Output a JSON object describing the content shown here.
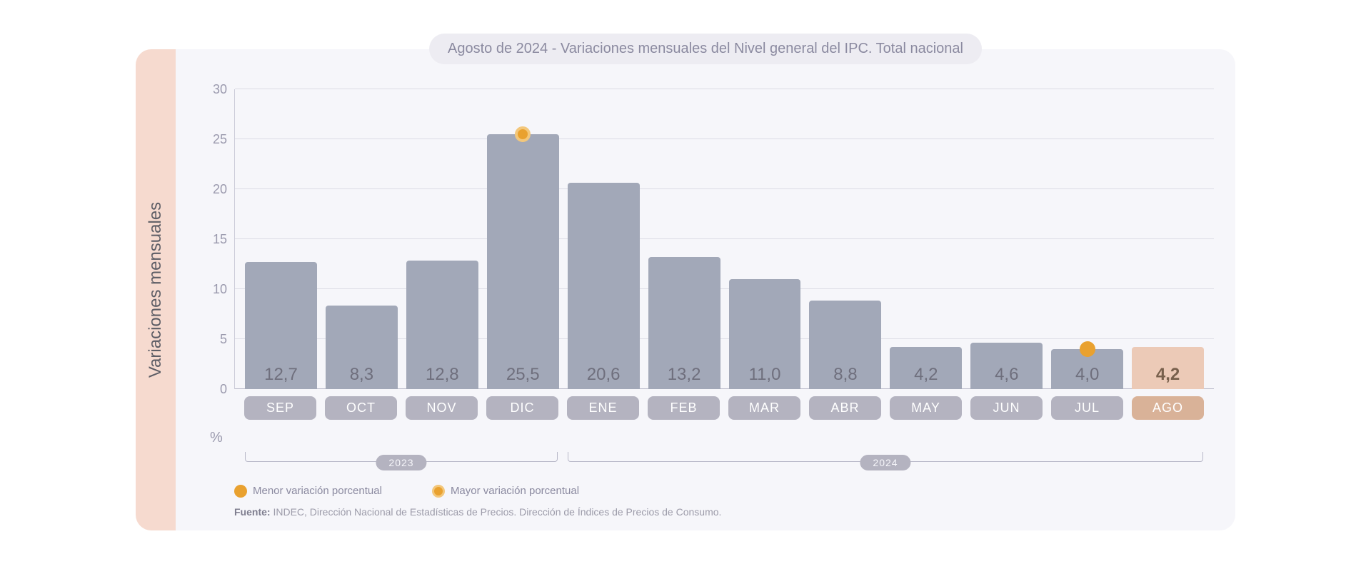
{
  "title_prefix": "Agosto de 2024 - ",
  "title_main": "Variaciones mensuales del Nivel general del IPC. Total nacional",
  "y_axis_label": "Variaciones mensuales",
  "percent_symbol": "%",
  "chart": {
    "type": "bar",
    "ylim": [
      0,
      30
    ],
    "yticks": [
      30,
      25,
      20,
      15,
      10,
      5,
      0
    ],
    "grid_color": "#dcdce5",
    "baseline_color": "#b8b8c8",
    "background_color": "#f6f6fa",
    "sidebar_color": "#f6dacf",
    "bar_color_default": "#a2a8b8",
    "bar_color_highlight": "#eccab7",
    "month_pill_color_default": "#b4b3c0",
    "month_pill_color_highlight": "#d9b298",
    "value_color_default": "#6f6f7d",
    "value_color_highlight": "#78604c",
    "marker_color": "#e9a12f",
    "marker_ring_color": "#f3c77b",
    "value_fontsize": 24,
    "month_fontsize": 18,
    "ytick_fontsize": 18,
    "title_fontsize": 20,
    "months": [
      {
        "label": "SEP",
        "value": 12.7,
        "display": "12,7",
        "year": 2023,
        "highlight": false
      },
      {
        "label": "OCT",
        "value": 8.3,
        "display": "8,3",
        "year": 2023,
        "highlight": false
      },
      {
        "label": "NOV",
        "value": 12.8,
        "display": "12,8",
        "year": 2023,
        "highlight": false
      },
      {
        "label": "DIC",
        "value": 25.5,
        "display": "25,5",
        "year": 2023,
        "highlight": false,
        "marker": "max"
      },
      {
        "label": "ENE",
        "value": 20.6,
        "display": "20,6",
        "year": 2024,
        "highlight": false
      },
      {
        "label": "FEB",
        "value": 13.2,
        "display": "13,2",
        "year": 2024,
        "highlight": false
      },
      {
        "label": "MAR",
        "value": 11.0,
        "display": "11,0",
        "year": 2024,
        "highlight": false
      },
      {
        "label": "ABR",
        "value": 8.8,
        "display": "8,8",
        "year": 2024,
        "highlight": false
      },
      {
        "label": "MAY",
        "value": 4.2,
        "display": "4,2",
        "year": 2024,
        "highlight": false
      },
      {
        "label": "JUN",
        "value": 4.6,
        "display": "4,6",
        "year": 2024,
        "highlight": false
      },
      {
        "label": "JUL",
        "value": 4.0,
        "display": "4,0",
        "year": 2024,
        "highlight": false,
        "marker": "min"
      },
      {
        "label": "AGO",
        "value": 4.2,
        "display": "4,2",
        "year": 2024,
        "highlight": true
      }
    ],
    "year_groups": [
      {
        "label": "2023",
        "start_index": 0,
        "end_index": 3
      },
      {
        "label": "2024",
        "start_index": 4,
        "end_index": 11
      }
    ]
  },
  "legend": {
    "min_label": "Menor variación porcentual",
    "max_label": "Mayor variación porcentual"
  },
  "source_prefix": "Fuente: ",
  "source_text": "INDEC, Dirección Nacional de Estadísticas de Precios. Dirección de Índices de Precios de Consumo."
}
